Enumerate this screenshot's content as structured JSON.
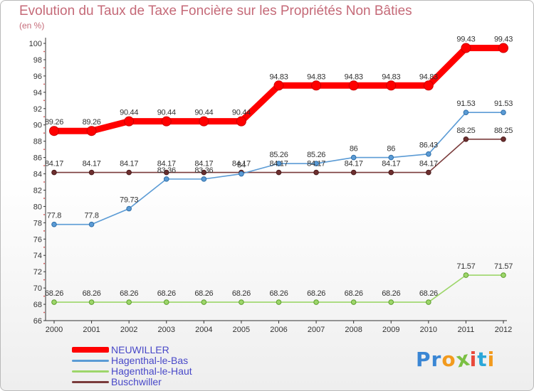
{
  "header": {
    "title": "Evolution du Taux de Taxe Foncière sur les Propriétés Non Bâties",
    "unit": "(en %)"
  },
  "logo": {
    "text": "Proxiti",
    "letters": [
      "P",
      "r",
      "o",
      "x",
      "i",
      "t",
      "i"
    ],
    "colors": [
      "#3a86d4",
      "#3a86d4",
      "#f29a1d",
      "#7bc043",
      "#e8483a",
      "#2ba7d9",
      "#f29a1d"
    ]
  },
  "chart_data": {
    "type": "line",
    "title": "Evolution du Taux de Taxe Foncière sur les Propriétés Non Bâties",
    "ylabel": "(en %)",
    "xlabel": "",
    "x": [
      "2000",
      "2001",
      "2002",
      "2003",
      "2004",
      "2005",
      "2006",
      "2007",
      "2008",
      "2009",
      "2010",
      "2011",
      "2012"
    ],
    "ylim": [
      66,
      100
    ],
    "yticks": [
      "66",
      "68",
      "70",
      "72",
      "74",
      "76",
      "78",
      "80",
      "82",
      "84",
      "86",
      "88",
      "90",
      "92",
      "94",
      "96",
      "98",
      "100"
    ],
    "grid": false,
    "legend_position": "bottom-left",
    "series": [
      {
        "name": "NEUWILLER",
        "color": "#ff0000",
        "values": [
          89.26,
          89.26,
          90.44,
          90.44,
          90.44,
          90.44,
          94.83,
          94.83,
          94.83,
          94.83,
          94.83,
          99.43,
          99.43
        ],
        "labels": [
          "89.26",
          "89.26",
          "90.44",
          "90.44",
          "90.44",
          "90.44",
          "94.83",
          "94.83",
          "94.83",
          "94.83",
          "94.83",
          "99.43",
          "99.43"
        ]
      },
      {
        "name": "Hagenthal-le-Bas",
        "color": "#5b9bd5",
        "values": [
          77.8,
          77.8,
          79.73,
          83.36,
          83.36,
          84,
          85.26,
          85.26,
          86,
          86,
          86.43,
          91.53,
          91.53
        ],
        "labels": [
          "77.8",
          "77.8",
          "79.73",
          "83.36",
          "83.36",
          "84",
          "85.26",
          "85.26",
          "86",
          "86",
          "86.43",
          "91.53",
          "91.53"
        ]
      },
      {
        "name": "Hagenthal-le-Haut",
        "color": "#9dd66a",
        "values": [
          68.26,
          68.26,
          68.26,
          68.26,
          68.26,
          68.26,
          68.26,
          68.26,
          68.26,
          68.26,
          68.26,
          71.57,
          71.57
        ],
        "labels": [
          "68.26",
          "68.26",
          "68.26",
          "68.26",
          "68.26",
          "68.26",
          "68.26",
          "68.26",
          "68.26",
          "68.26",
          "68.26",
          "71.57",
          "71.57"
        ]
      },
      {
        "name": "Buschwiller",
        "color": "#7a3b3b",
        "values": [
          84.17,
          84.17,
          84.17,
          84.17,
          84.17,
          84.17,
          84.17,
          84.17,
          84.17,
          84.17,
          84.17,
          88.25,
          88.25
        ],
        "labels": [
          "84.17",
          "84.17",
          "84.17",
          "84.17",
          "84.17",
          "84.17",
          "84.17",
          "84.17",
          "84.17",
          "84.17",
          "84.17",
          "88.25",
          "88.25"
        ]
      }
    ]
  }
}
